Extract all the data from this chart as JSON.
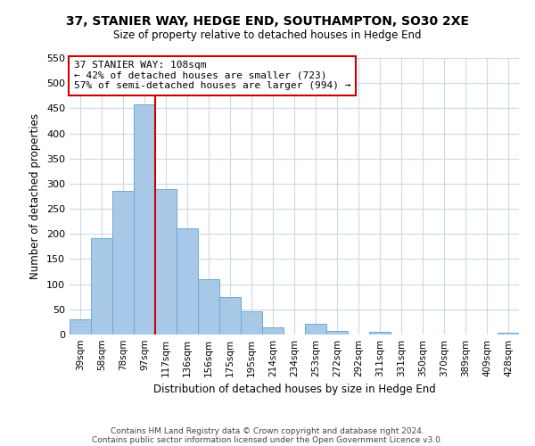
{
  "title": "37, STANIER WAY, HEDGE END, SOUTHAMPTON, SO30 2XE",
  "subtitle": "Size of property relative to detached houses in Hedge End",
  "xlabel": "Distribution of detached houses by size in Hedge End",
  "ylabel": "Number of detached properties",
  "categories": [
    "39sqm",
    "58sqm",
    "78sqm",
    "97sqm",
    "117sqm",
    "136sqm",
    "156sqm",
    "175sqm",
    "195sqm",
    "214sqm",
    "234sqm",
    "253sqm",
    "272sqm",
    "292sqm",
    "311sqm",
    "331sqm",
    "350sqm",
    "370sqm",
    "389sqm",
    "409sqm",
    "428sqm"
  ],
  "values": [
    30,
    192,
    285,
    458,
    290,
    212,
    110,
    74,
    47,
    14,
    0,
    22,
    7,
    0,
    5,
    0,
    0,
    0,
    0,
    0,
    3
  ],
  "bar_color": "#a8c8e8",
  "bar_edge_color": "#6aaad4",
  "vline_color": "#cc0000",
  "annotation_title": "37 STANIER WAY: 108sqm",
  "annotation_line1": "← 42% of detached houses are smaller (723)",
  "annotation_line2": "57% of semi-detached houses are larger (994) →",
  "annotation_box_color": "#ffffff",
  "annotation_box_edge": "#cc0000",
  "ylim": [
    0,
    550
  ],
  "yticks": [
    0,
    50,
    100,
    150,
    200,
    250,
    300,
    350,
    400,
    450,
    500,
    550
  ],
  "footer1": "Contains HM Land Registry data © Crown copyright and database right 2024.",
  "footer2": "Contains public sector information licensed under the Open Government Licence v3.0.",
  "background_color": "#ffffff",
  "grid_color": "#ccd9e8"
}
